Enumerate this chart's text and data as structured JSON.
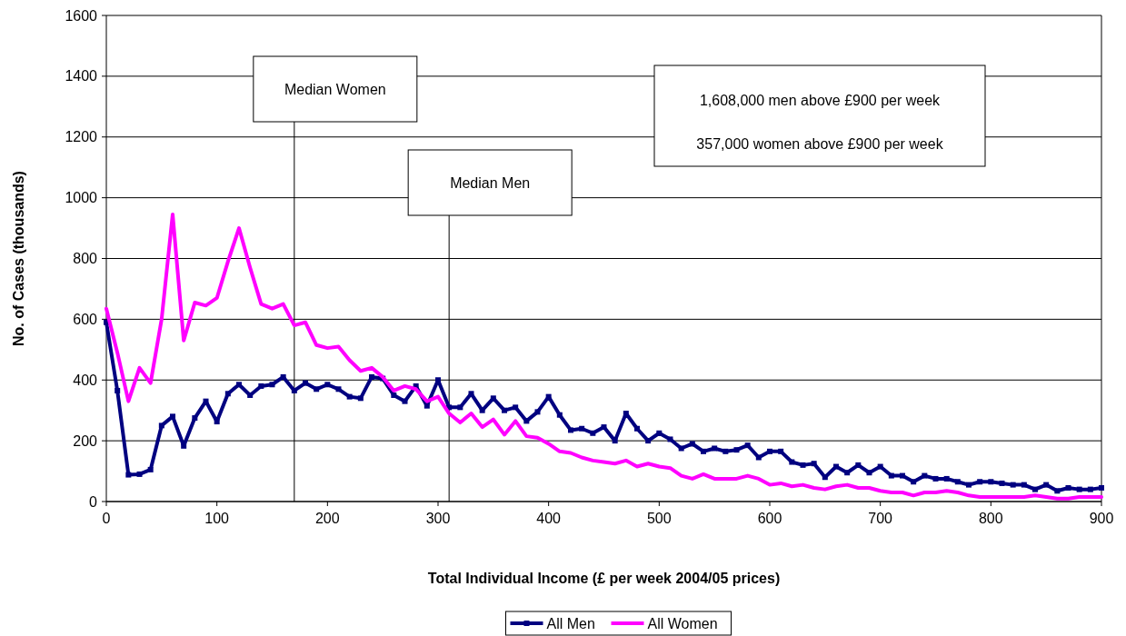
{
  "chart_data": {
    "type": "line",
    "xlabel": "Total Individual Income (£ per week 2004/05 prices)",
    "ylabel": "No. of Cases (thousands)",
    "x": [
      0,
      10,
      20,
      30,
      40,
      50,
      60,
      70,
      80,
      90,
      100,
      110,
      120,
      130,
      140,
      150,
      160,
      170,
      180,
      190,
      200,
      210,
      220,
      230,
      240,
      250,
      260,
      270,
      280,
      290,
      300,
      310,
      320,
      330,
      340,
      350,
      360,
      370,
      380,
      390,
      400,
      410,
      420,
      430,
      440,
      450,
      460,
      470,
      480,
      490,
      500,
      510,
      520,
      530,
      540,
      550,
      560,
      570,
      580,
      590,
      600,
      610,
      620,
      630,
      640,
      650,
      660,
      670,
      680,
      690,
      700,
      710,
      720,
      730,
      740,
      750,
      760,
      770,
      780,
      790,
      800,
      810,
      820,
      830,
      840,
      850,
      860,
      870,
      880,
      890,
      900
    ],
    "series": [
      {
        "name": "All Men",
        "color": "#000080",
        "marker": "square",
        "values": [
          590,
          365,
          88,
          90,
          105,
          250,
          280,
          183,
          275,
          330,
          263,
          355,
          385,
          350,
          380,
          385,
          410,
          365,
          390,
          370,
          385,
          370,
          345,
          340,
          410,
          405,
          350,
          330,
          380,
          315,
          400,
          310,
          310,
          355,
          300,
          340,
          300,
          310,
          265,
          295,
          345,
          285,
          235,
          240,
          225,
          245,
          200,
          290,
          240,
          200,
          225,
          205,
          175,
          190,
          165,
          175,
          165,
          170,
          185,
          145,
          165,
          165,
          130,
          120,
          125,
          80,
          115,
          95,
          120,
          95,
          115,
          85,
          85,
          65,
          85,
          75,
          75,
          65,
          55,
          65,
          65,
          60,
          55,
          55,
          40,
          55,
          35,
          45,
          40,
          40,
          45
        ]
      },
      {
        "name": "All Women",
        "color": "#ff00ff",
        "marker": "none",
        "values": [
          635,
          490,
          330,
          440,
          390,
          600,
          945,
          530,
          655,
          645,
          670,
          790,
          900,
          770,
          650,
          635,
          650,
          580,
          590,
          515,
          505,
          510,
          465,
          430,
          440,
          410,
          365,
          380,
          370,
          330,
          345,
          290,
          260,
          290,
          245,
          270,
          220,
          265,
          215,
          210,
          190,
          165,
          160,
          145,
          135,
          130,
          125,
          135,
          115,
          125,
          115,
          110,
          85,
          75,
          90,
          75,
          75,
          75,
          85,
          75,
          55,
          60,
          50,
          55,
          45,
          40,
          50,
          55,
          45,
          45,
          35,
          30,
          30,
          20,
          30,
          30,
          35,
          30,
          20,
          15,
          15,
          15,
          15,
          15,
          20,
          15,
          10,
          10,
          15,
          15,
          15
        ]
      }
    ],
    "xlim": [
      0,
      900
    ],
    "xticks": [
      0,
      100,
      200,
      300,
      400,
      500,
      600,
      700,
      800,
      900
    ],
    "ylim": [
      0,
      1600
    ],
    "yticks": [
      0,
      200,
      400,
      600,
      800,
      1000,
      1200,
      1400,
      1600
    ],
    "grid": "y",
    "legend": "bottom",
    "ref_lines": [
      {
        "axis": "x",
        "value": 170,
        "label": "Median Women",
        "color": "#000000"
      },
      {
        "axis": "x",
        "value": 310,
        "label": "Median Men",
        "color": "#000000"
      }
    ],
    "annotations": [
      "1,608,000 men above £900 per week",
      "357,000 women above £900 per week"
    ]
  }
}
